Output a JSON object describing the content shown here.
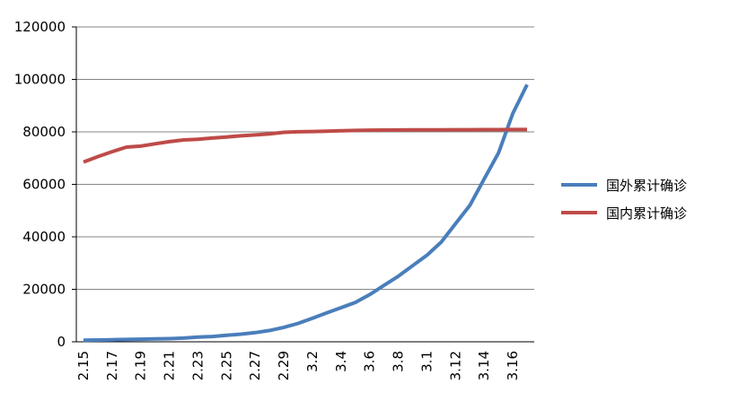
{
  "chart_data": {
    "type": "line",
    "categories": [
      "2.15",
      null,
      "2.17",
      null,
      "2.19",
      null,
      "2.21",
      null,
      "2.23",
      null,
      "2.25",
      null,
      "2.27",
      null,
      "2.29",
      null,
      "3.2",
      null,
      "3.4",
      null,
      "3.6",
      null,
      "3.8",
      null,
      "3.1",
      null,
      "3.12",
      null,
      "3.14",
      null,
      "3.16",
      null
    ],
    "series": [
      {
        "name": "国外累计确诊",
        "color": "#4a7ebb",
        "values": [
          600,
          700,
          800,
          900,
          1000,
          1100,
          1200,
          1400,
          1800,
          2000,
          2500,
          2900,
          3500,
          4300,
          5500,
          7000,
          9000,
          11000,
          13000,
          15000,
          18000,
          21500,
          25000,
          29000,
          33000,
          38000,
          45000,
          52000,
          62000,
          72000,
          87000,
          98000
        ]
      },
      {
        "name": "国内累计确诊",
        "color": "#be4b48",
        "values": [
          68500,
          70548,
          72436,
          74185,
          74576,
          75465,
          76288,
          76936,
          77150,
          77658,
          78064,
          78497,
          78824,
          79251,
          79824,
          80026,
          80151,
          80270,
          80409,
          80552,
          80651,
          80695,
          80735,
          80754,
          80778,
          80793,
          80813,
          80824,
          80844,
          80860,
          80881,
          80894
        ]
      }
    ],
    "ylim": [
      0,
      120000
    ],
    "yticks": [
      0,
      20000,
      40000,
      60000,
      80000,
      100000,
      120000
    ],
    "grid": true,
    "legend": "right"
  }
}
